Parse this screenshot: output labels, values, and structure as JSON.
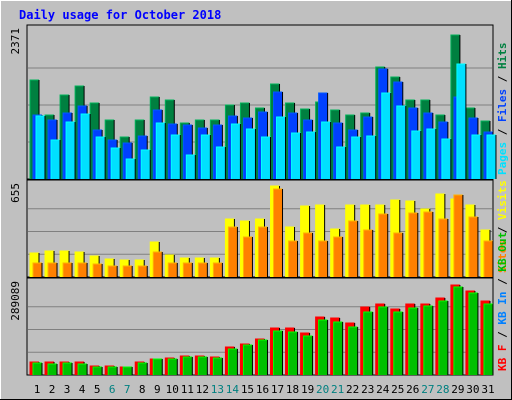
{
  "title": "Daily usage for October 2018",
  "chart_data": [
    {
      "type": "bar",
      "panel": "hits-files-pages",
      "max_label": "2371",
      "legend_vertical": [
        "Pages",
        "Files",
        "Hits"
      ],
      "legend_colors": [
        "#00e0ff",
        "#0040ff",
        "#008040"
      ],
      "grid": true,
      "ylim": [
        0,
        2371
      ],
      "categories": [
        "1",
        "2",
        "3",
        "4",
        "5",
        "6",
        "7",
        "8",
        "9",
        "10",
        "11",
        "12",
        "13",
        "14",
        "15",
        "16",
        "17",
        "18",
        "19",
        "20",
        "21",
        "22",
        "23",
        "24",
        "25",
        "26",
        "27",
        "28",
        "29",
        "30",
        "31"
      ],
      "series": [
        {
          "name": "Hits",
          "color": "#008040",
          "values": [
            1580,
            1030,
            1340,
            1490,
            1220,
            940,
            680,
            940,
            1310,
            1270,
            890,
            940,
            940,
            1180,
            1210,
            1140,
            1520,
            1210,
            1120,
            1230,
            1110,
            1030,
            1050,
            1800,
            1640,
            1260,
            1270,
            1030,
            2300,
            1140,
            930
          ]
        },
        {
          "name": "Files",
          "color": "#0040ff",
          "values": [
            1020,
            940,
            1060,
            1170,
            790,
            620,
            570,
            690,
            1110,
            880,
            870,
            820,
            860,
            1010,
            970,
            1080,
            1390,
            1060,
            940,
            1380,
            900,
            790,
            1000,
            1760,
            1550,
            1140,
            1050,
            920,
            1320,
            970,
            760
          ]
        },
        {
          "name": "Pages",
          "color": "#00e0ff",
          "values": [
            1010,
            630,
            910,
            1040,
            680,
            490,
            320,
            460,
            890,
            700,
            380,
            700,
            520,
            880,
            800,
            680,
            1000,
            740,
            750,
            920,
            520,
            680,
            690,
            1380,
            1170,
            770,
            800,
            640,
            1840,
            710,
            700
          ]
        }
      ],
      "weekend_days": [
        "6",
        "7",
        "13",
        "14",
        "20",
        "21",
        "27",
        "28"
      ]
    },
    {
      "type": "bar",
      "panel": "visits-sites",
      "max_label": "655",
      "legend_vertical": [
        "Sites",
        "Visits"
      ],
      "legend_colors": [
        "#ff8000",
        "#ffff00"
      ],
      "grid": true,
      "ylim": [
        0,
        655
      ],
      "series": [
        {
          "name": "Visits",
          "color": "#ffff00",
          "values": [
            170,
            190,
            190,
            180,
            150,
            130,
            120,
            120,
            250,
            160,
            140,
            140,
            140,
            420,
            400,
            420,
            655,
            360,
            510,
            515,
            345,
            520,
            520,
            520,
            555,
            545,
            490,
            595,
            560,
            520,
            340
          ]
        },
        {
          "name": "Sites",
          "color": "#ff8000",
          "values": [
            100,
            100,
            100,
            100,
            90,
            80,
            80,
            80,
            180,
            100,
            100,
            100,
            100,
            360,
            290,
            360,
            630,
            260,
            320,
            260,
            290,
            400,
            340,
            450,
            320,
            460,
            470,
            420,
            590,
            430,
            260
          ]
        }
      ]
    },
    {
      "type": "bar",
      "panel": "kbytes",
      "max_label": "289089",
      "legend_vertical": [
        "KB F",
        "KB In",
        "KB Out"
      ],
      "legend_colors": [
        "#ff0000",
        "#0080ff",
        "#00c000"
      ],
      "grid": true,
      "ylim": [
        0,
        289089
      ],
      "series": [
        {
          "name": "KB F",
          "color": "#ff0000",
          "values": [
            42000,
            40000,
            42000,
            40000,
            30000,
            28000,
            26000,
            40000,
            52000,
            55000,
            59000,
            60000,
            58000,
            90000,
            99000,
            115000,
            148000,
            150000,
            135000,
            184000,
            182000,
            166000,
            215000,
            226000,
            210000,
            224000,
            227000,
            245000,
            287000,
            268000,
            235000
          ]
        },
        {
          "name": "KB Out",
          "color": "#00c000",
          "values": [
            38000,
            36000,
            37000,
            35000,
            27000,
            26000,
            24000,
            38000,
            50000,
            52000,
            56000,
            58000,
            55000,
            84000,
            94000,
            110000,
            140000,
            138000,
            124000,
            174000,
            168000,
            152000,
            200000,
            216000,
            200000,
            213000,
            220000,
            235000,
            278000,
            260000,
            226000
          ]
        }
      ]
    }
  ]
}
